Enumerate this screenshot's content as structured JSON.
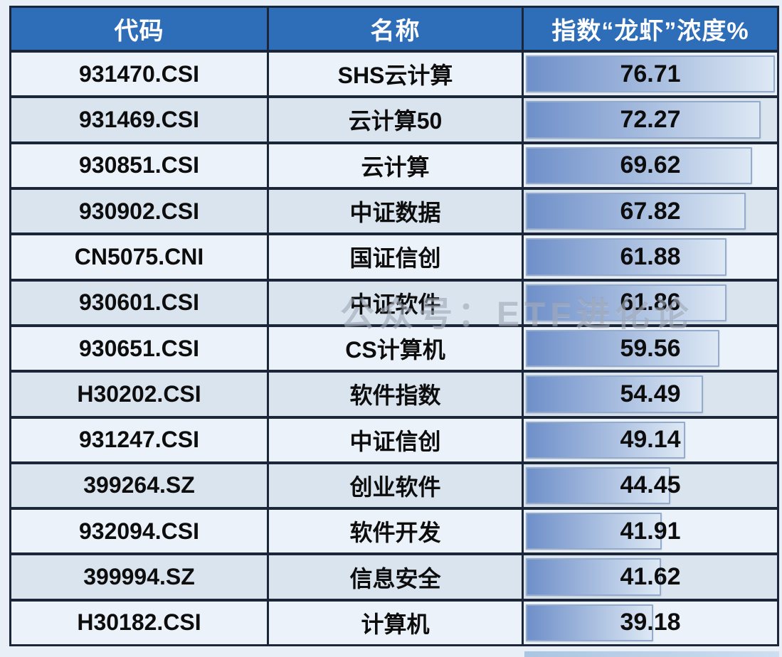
{
  "header": {
    "columns": [
      "代码",
      "名称",
      "指数“龙虾”浓度%"
    ]
  },
  "watermark": "公众号：ETF进化论",
  "colors": {
    "page_bg": "#e8eff6",
    "header_bg": "#2e6db8",
    "header_text": "#ffffff",
    "border": "#1b2638",
    "row_light": "#ebf2f9",
    "row_dark": "#d9e4ef",
    "bar_start": "#6e8fc9",
    "bar_end": "#dde8f4",
    "bar_border": "#94abcb",
    "body_text": "#0d0d0d"
  },
  "chart_data": {
    "type": "table",
    "title": "指数“龙虾”浓度%",
    "columns": [
      "代码",
      "名称",
      "指数“龙虾”浓度%"
    ],
    "bar_scale_max": 76.71,
    "bar_style": "gradient-databar",
    "categories": [
      "SHS云计算",
      "云计算50",
      "云计算",
      "中证数据",
      "国证信创",
      "中证软件",
      "CS计算机",
      "软件指数",
      "中证信创",
      "创业软件",
      "软件开发",
      "信息安全",
      "计算机"
    ],
    "values": [
      76.71,
      72.27,
      69.62,
      67.82,
      61.88,
      61.86,
      59.56,
      54.49,
      49.14,
      44.45,
      41.91,
      41.62,
      39.18
    ],
    "rows": [
      {
        "code": "931470.CSI",
        "name": "SHS云计算",
        "value": 76.71
      },
      {
        "code": "931469.CSI",
        "name": "云计算50",
        "value": 72.27
      },
      {
        "code": "930851.CSI",
        "name": "云计算",
        "value": 69.62
      },
      {
        "code": "930902.CSI",
        "name": "中证数据",
        "value": 67.82
      },
      {
        "code": "CN5075.CNI",
        "name": "国证信创",
        "value": 61.88
      },
      {
        "code": "930601.CSI",
        "name": "中证软件",
        "value": 61.86
      },
      {
        "code": "930651.CSI",
        "name": "CS计算机",
        "value": 59.56
      },
      {
        "code": "H30202.CSI",
        "name": "软件指数",
        "value": 54.49
      },
      {
        "code": "931247.CSI",
        "name": "中证信创",
        "value": 49.14
      },
      {
        "code": "399264.SZ",
        "name": "创业软件",
        "value": 44.45
      },
      {
        "code": "932094.CSI",
        "name": "软件开发",
        "value": 41.91
      },
      {
        "code": "399994.SZ",
        "name": "信息安全",
        "value": 41.62
      },
      {
        "code": "H30182.CSI",
        "name": "计算机",
        "value": 39.18
      }
    ]
  }
}
